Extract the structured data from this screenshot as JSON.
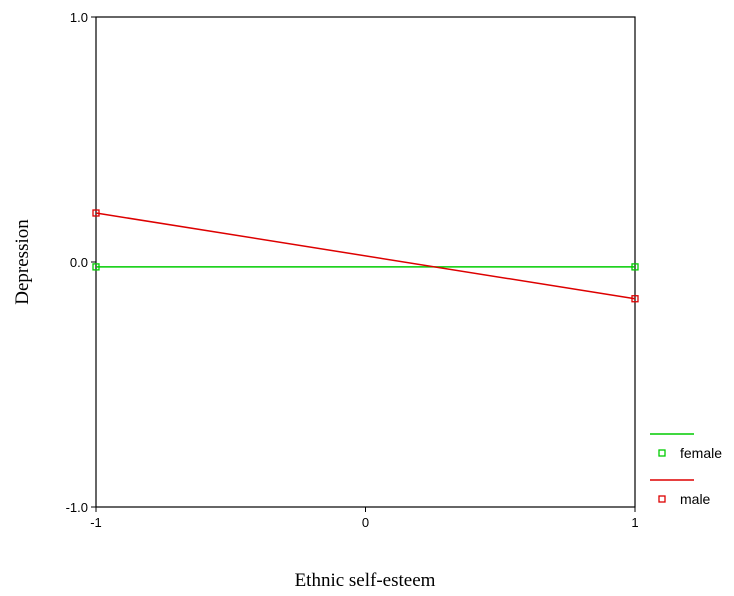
{
  "chart_data": {
    "type": "line",
    "title": "",
    "xlabel": "Ethnic self-esteem",
    "ylabel": "Depression",
    "x": [
      -1,
      1
    ],
    "xlim": [
      -1,
      1
    ],
    "ylim": [
      -1.0,
      1.0
    ],
    "x_ticks": [
      "-1",
      "0",
      "1"
    ],
    "y_ticks": [
      "1.0",
      "0.0",
      "-1.0"
    ],
    "grid": false,
    "legend_position": "right",
    "series": [
      {
        "name": "female",
        "color": "#00cc00",
        "values": [
          -0.02,
          -0.02
        ]
      },
      {
        "name": "male",
        "color": "#dd0000",
        "values": [
          0.2,
          -0.15
        ]
      }
    ]
  }
}
